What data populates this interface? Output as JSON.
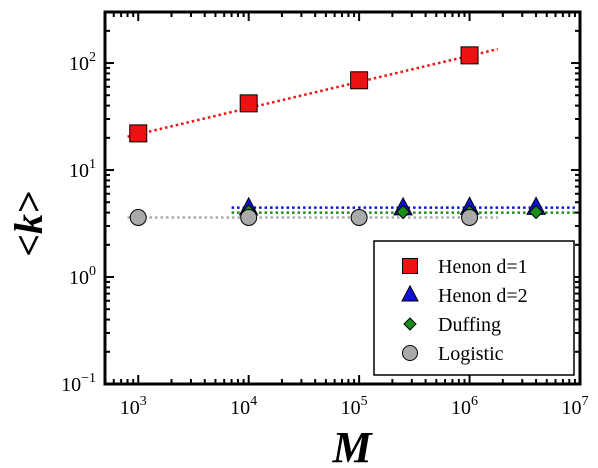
{
  "chart_data": {
    "type": "scatter",
    "xscale": "log",
    "yscale": "log",
    "xlim": [
      500,
      10000000
    ],
    "ylim": [
      0.1,
      300
    ],
    "xlabel": "M",
    "ylabel": "<k>",
    "grid": false,
    "legend_position": "bottom-right",
    "xticks": [
      {
        "value": 1000,
        "base": "10",
        "exp": "3"
      },
      {
        "value": 10000,
        "base": "10",
        "exp": "4"
      },
      {
        "value": 100000,
        "base": "10",
        "exp": "5"
      },
      {
        "value": 1000000,
        "base": "10",
        "exp": "6"
      },
      {
        "value": 10000000,
        "base": "10",
        "exp": "7"
      }
    ],
    "yticks": [
      {
        "value": 0.1,
        "base": "10",
        "exp": "−1"
      },
      {
        "value": 1,
        "base": "10",
        "exp": "0"
      },
      {
        "value": 10,
        "base": "10",
        "exp": "1"
      },
      {
        "value": 100,
        "base": "10",
        "exp": "2"
      }
    ],
    "series": [
      {
        "name": "Henon d=1",
        "marker": "square",
        "color": "#ee1111",
        "points": [
          [
            1000,
            22
          ],
          [
            10000,
            42
          ],
          [
            100000,
            69
          ],
          [
            1000000,
            118
          ]
        ],
        "fit": {
          "x": [
            800,
            1800000
          ],
          "y": [
            20.5,
            135
          ],
          "color": "#ee1111"
        }
      },
      {
        "name": "Henon d=2",
        "marker": "triangle",
        "color": "#1111dd",
        "points": [
          [
            10000,
            4.4
          ],
          [
            250000,
            4.4
          ],
          [
            1000000,
            4.45
          ],
          [
            4000000,
            4.45
          ]
        ],
        "fit": {
          "x": [
            7000,
            9000000
          ],
          "y": [
            4.45,
            4.45
          ],
          "color": "#1111dd"
        }
      },
      {
        "name": "Duffing",
        "marker": "diamond",
        "color": "#1a8c1a",
        "points": [
          [
            10000,
            4.1
          ],
          [
            250000,
            4.05
          ],
          [
            1000000,
            4.05
          ],
          [
            4000000,
            4.05
          ]
        ],
        "fit": {
          "x": [
            7000,
            9000000
          ],
          "y": [
            4.0,
            4.0
          ],
          "color": "#1a8c1a"
        }
      },
      {
        "name": "Logistic",
        "marker": "circle",
        "color": "#aaaaaa",
        "points": [
          [
            1000,
            3.6
          ],
          [
            10000,
            3.6
          ],
          [
            100000,
            3.6
          ],
          [
            1000000,
            3.6
          ]
        ],
        "fit": {
          "x": [
            800,
            1800000
          ],
          "y": [
            3.6,
            3.6
          ],
          "color": "#aaaaaa"
        }
      }
    ]
  }
}
